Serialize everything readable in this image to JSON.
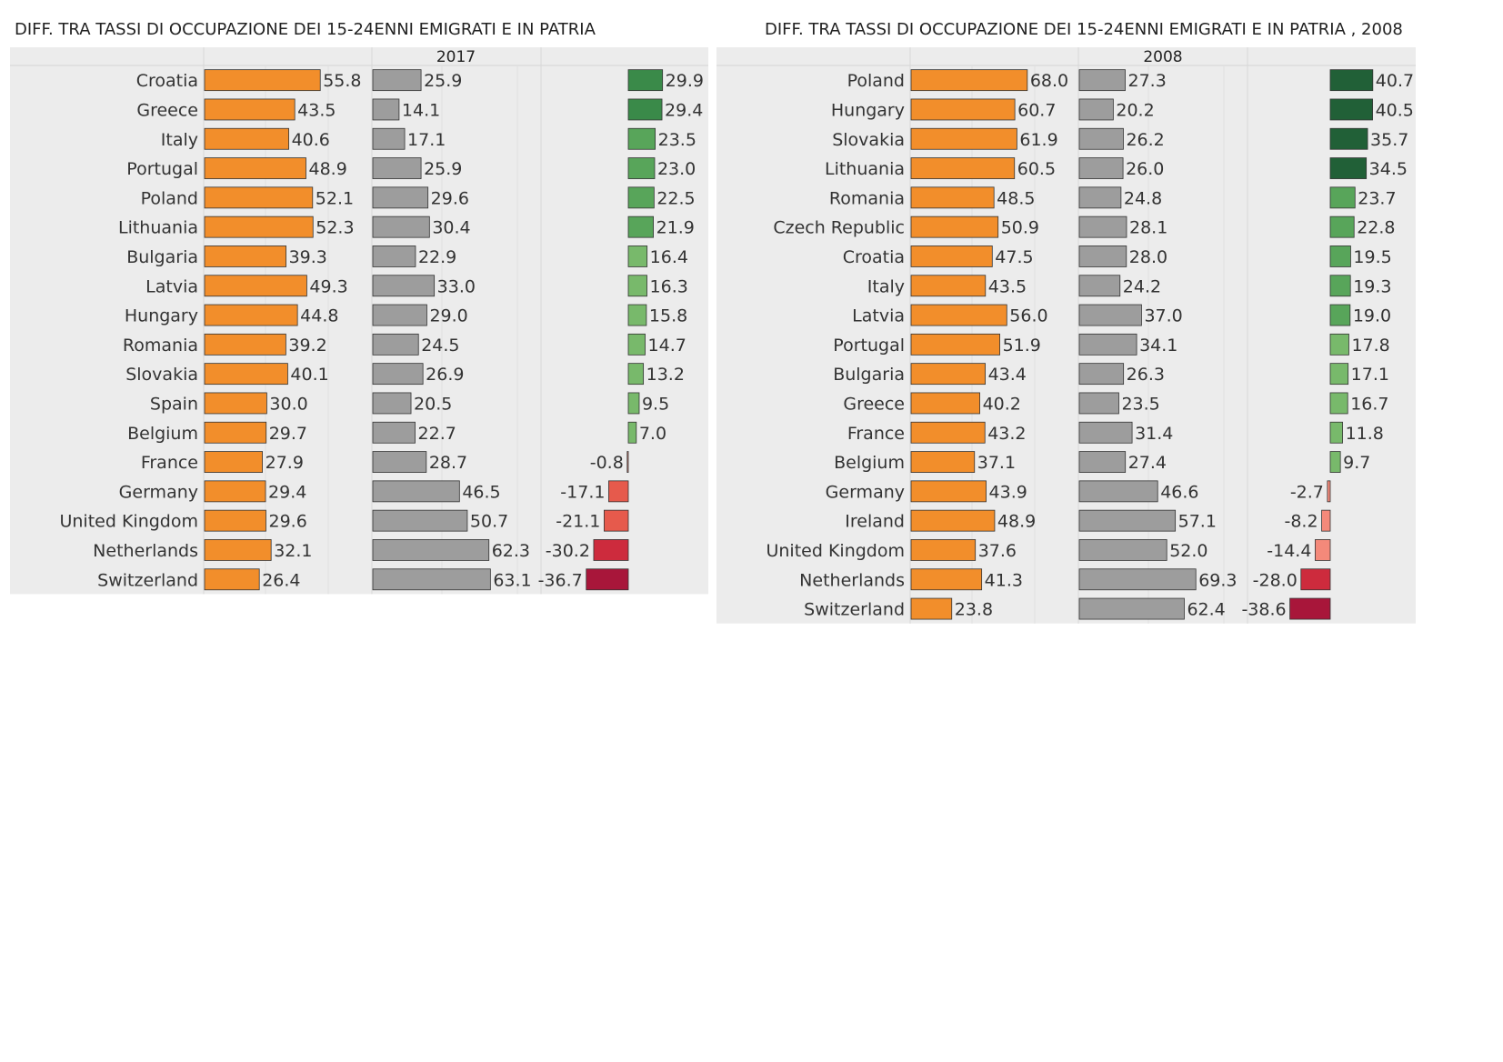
{
  "colors": {
    "emigrants_bar": "#f28e2b",
    "home_bar": "#9d9d9d",
    "panel_bg": "#ececec",
    "positive_scale": [
      "#78b96b",
      "#58a55a",
      "#3a8a49",
      "#216037"
    ],
    "negative_scale": [
      "#f4897a",
      "#e65a4c",
      "#cd2b3d",
      "#a8163a"
    ]
  },
  "chart_data": [
    {
      "type": "bar",
      "title": "DIFF. TRA TASSI DI OCCUPAZIONE DEI 15-24ENNI EMIGRATI E IN PATRIA",
      "header": "2017",
      "categories": [
        "Croatia",
        "Greece",
        "Italy",
        "Portugal",
        "Poland",
        "Lithuania",
        "Bulgaria",
        "Latvia",
        "Hungary",
        "Romania",
        "Slovakia",
        "Spain",
        "Belgium",
        "France",
        "Germany",
        "United Kingdom",
        "Netherlands",
        "Switzerland"
      ],
      "series": [
        {
          "values": [
            55.8,
            43.5,
            40.6,
            48.9,
            52.1,
            52.3,
            39.3,
            49.3,
            44.8,
            39.2,
            40.1,
            30.0,
            29.7,
            27.9,
            29.4,
            29.6,
            32.1,
            26.4
          ]
        },
        {
          "values": [
            25.9,
            14.1,
            17.1,
            25.9,
            29.6,
            30.4,
            22.9,
            33.0,
            29.0,
            24.5,
            26.9,
            20.5,
            22.7,
            28.7,
            46.5,
            50.7,
            62.3,
            63.1
          ]
        },
        {
          "values": [
            29.9,
            29.4,
            23.5,
            23.0,
            22.5,
            21.9,
            16.4,
            16.3,
            15.8,
            14.7,
            13.2,
            9.5,
            7.0,
            -0.8,
            -17.1,
            -21.1,
            -30.2,
            -36.7
          ]
        }
      ]
    },
    {
      "type": "bar",
      "title": "DIFF. TRA TASSI DI OCCUPAZIONE DEI 15-24ENNI EMIGRATI E IN PATRIA , 2008",
      "header": "2008",
      "categories": [
        "Poland",
        "Hungary",
        "Slovakia",
        "Lithuania",
        "Romania",
        "Czech Republic",
        "Croatia",
        "Italy",
        "Latvia",
        "Portugal",
        "Bulgaria",
        "Greece",
        "France",
        "Belgium",
        "Germany",
        "Ireland",
        "United Kingdom",
        "Netherlands",
        "Switzerland"
      ],
      "series": [
        {
          "values": [
            68.0,
            60.7,
            61.9,
            60.5,
            48.5,
            50.9,
            47.5,
            43.5,
            56.0,
            51.9,
            43.4,
            40.2,
            43.2,
            37.1,
            43.9,
            48.9,
            37.6,
            41.3,
            23.8
          ]
        },
        {
          "values": [
            27.3,
            20.2,
            26.2,
            26.0,
            24.8,
            28.1,
            28.0,
            24.2,
            37.0,
            34.1,
            26.3,
            23.5,
            31.4,
            27.4,
            46.6,
            57.1,
            52.0,
            69.3,
            62.4
          ]
        },
        {
          "values": [
            40.7,
            40.5,
            35.7,
            34.5,
            23.7,
            22.8,
            19.5,
            19.3,
            19.0,
            17.8,
            17.1,
            16.7,
            11.8,
            9.7,
            -2.7,
            -8.2,
            -14.4,
            -28.0,
            -38.6
          ]
        }
      ]
    }
  ]
}
